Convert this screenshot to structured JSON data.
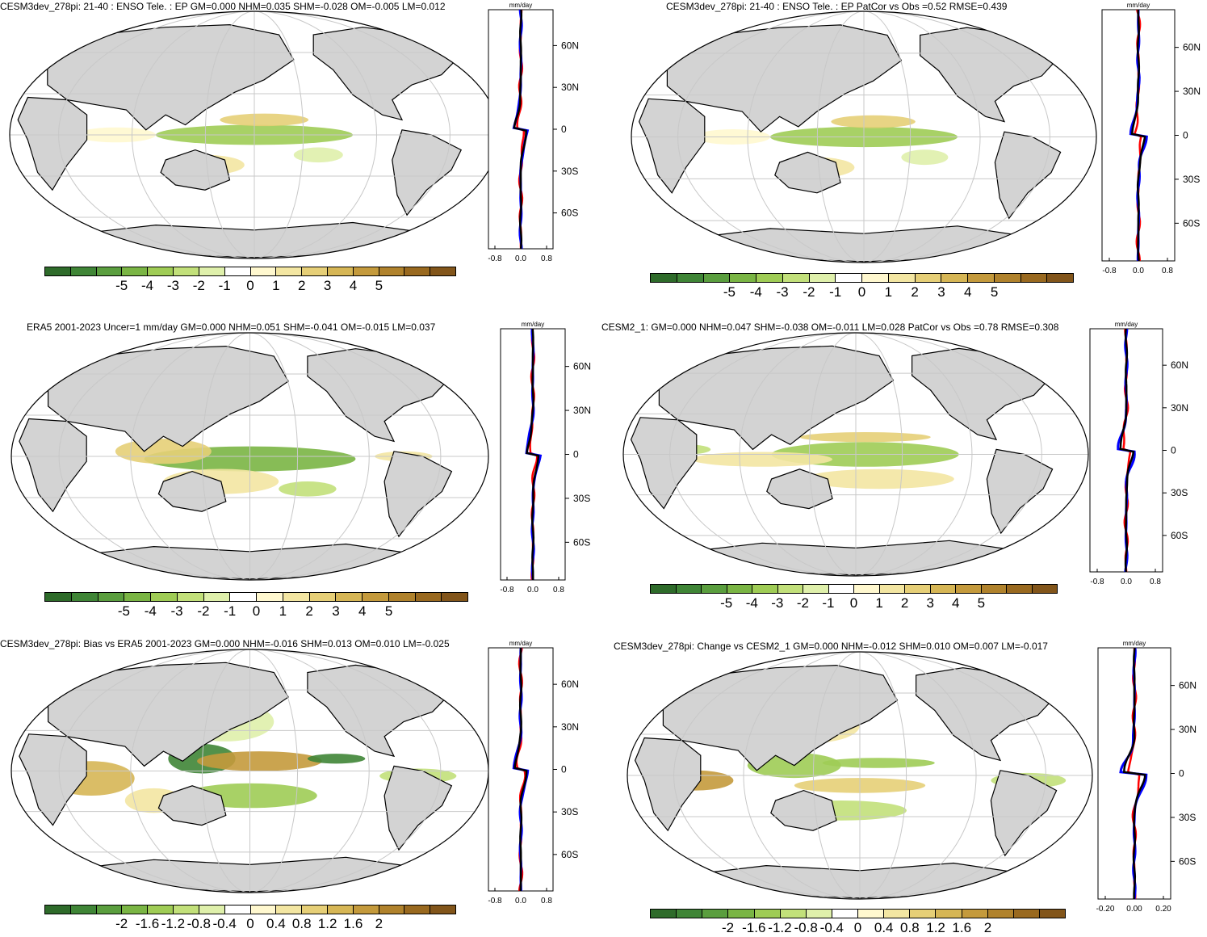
{
  "panels": [
    {
      "id": "p1",
      "title": "CESM3dev_278pi: 21-40 : ENSO Tele. : EP GM=0.000 NHM=0.035 SHM=-0.028 OM=-0.005 LM=0.012",
      "units": "mm/day",
      "colorbar_labels": [
        "-5",
        "-4",
        "-3",
        "-2",
        "-1",
        "0",
        "1",
        "2",
        "3",
        "4",
        "5"
      ],
      "zonal_x_labels": [
        "-0.8",
        "0.0",
        "0.8"
      ],
      "zonal_y_labels": [
        "60N",
        "30N",
        "0",
        "30S",
        "60S"
      ],
      "style": "enso"
    },
    {
      "id": "p2",
      "title": "CESM3dev_278pi: 21-40 : ENSO Tele. : EP PatCor vs Obs =0.52 RMSE=0.439",
      "units": "mm/day",
      "colorbar_labels": [
        "-5",
        "-4",
        "-3",
        "-2",
        "-1",
        "0",
        "1",
        "2",
        "3",
        "4",
        "5"
      ],
      "zonal_x_labels": [
        "-0.8",
        "0.0",
        "0.8"
      ],
      "zonal_y_labels": [
        "60N",
        "30N",
        "0",
        "30S",
        "60S"
      ],
      "style": "enso"
    },
    {
      "id": "p3",
      "title": "ERA5 2001-2023 Uncer=1 mm/day GM=0.000 NHM=0.051 SHM=-0.041 OM=-0.015 LM=0.037",
      "units": "mm/day",
      "colorbar_labels": [
        "-5",
        "-4",
        "-3",
        "-2",
        "-1",
        "0",
        "1",
        "2",
        "3",
        "4",
        "5"
      ],
      "zonal_x_labels": [
        "-0.8",
        "0.0",
        "0.8"
      ],
      "zonal_y_labels": [
        "60N",
        "30N",
        "0",
        "30S",
        "60S"
      ],
      "style": "obs"
    },
    {
      "id": "p4",
      "title": "CESM2_1: GM=0.000 NHM=0.047 SHM=-0.038 OM=-0.011 LM=0.028 PatCor vs Obs =0.78 RMSE=0.308",
      "units": "mm/day",
      "colorbar_labels": [
        "-5",
        "-4",
        "-3",
        "-2",
        "-1",
        "0",
        "1",
        "2",
        "3",
        "4",
        "5"
      ],
      "zonal_x_labels": [
        "-0.8",
        "0.0",
        "0.8"
      ],
      "zonal_y_labels": [
        "60N",
        "30N",
        "0",
        "30S",
        "60S"
      ],
      "style": "cesm2"
    },
    {
      "id": "p5",
      "title": "CESM3dev_278pi: Bias vs ERA5 2001-2023 GM=0.000 NHM=-0.016 SHM=0.013 OM=0.010 LM=-0.025",
      "units": "mm/day",
      "colorbar_labels": [
        "-2",
        "-1.6",
        "-1.2",
        "-0.8",
        "-0.4",
        "0",
        "0.4",
        "0.8",
        "1.2",
        "1.6",
        "2"
      ],
      "zonal_x_labels": [
        "-0.8",
        "0.0",
        "0.8"
      ],
      "zonal_y_labels": [
        "60N",
        "30N",
        "0",
        "30S",
        "60S"
      ],
      "style": "bias"
    },
    {
      "id": "p6",
      "title": "CESM3dev_278pi: Change vs CESM2_1 GM=0.000 NHM=-0.012 SHM=0.010 OM=0.007 LM=-0.017",
      "units": "mm/day",
      "colorbar_labels": [
        "-2",
        "-1.6",
        "-1.2",
        "-0.8",
        "-0.4",
        "0",
        "0.4",
        "0.8",
        "1.2",
        "1.6",
        "2"
      ],
      "zonal_x_labels": [
        "-0.20",
        "0.00",
        "0.20"
      ],
      "zonal_y_labels": [
        "60N",
        "30N",
        "0",
        "30S",
        "60S"
      ],
      "style": "change"
    }
  ],
  "colors": {
    "palette": [
      "#2e6b2a",
      "#3f8536",
      "#5a9e3e",
      "#7ab544",
      "#9fcc55",
      "#c2e07a",
      "#dff0ab",
      "#ffffff",
      "#fff8cf",
      "#f3e6a2",
      "#e6cf77",
      "#d6b655",
      "#c49a3c",
      "#b0822c",
      "#99691f",
      "#82551a"
    ],
    "land": "#d3d3d3",
    "zonal_model": "#ff0000",
    "zonal_obs": "#0000ff",
    "zonal_mean": "#000000"
  }
}
